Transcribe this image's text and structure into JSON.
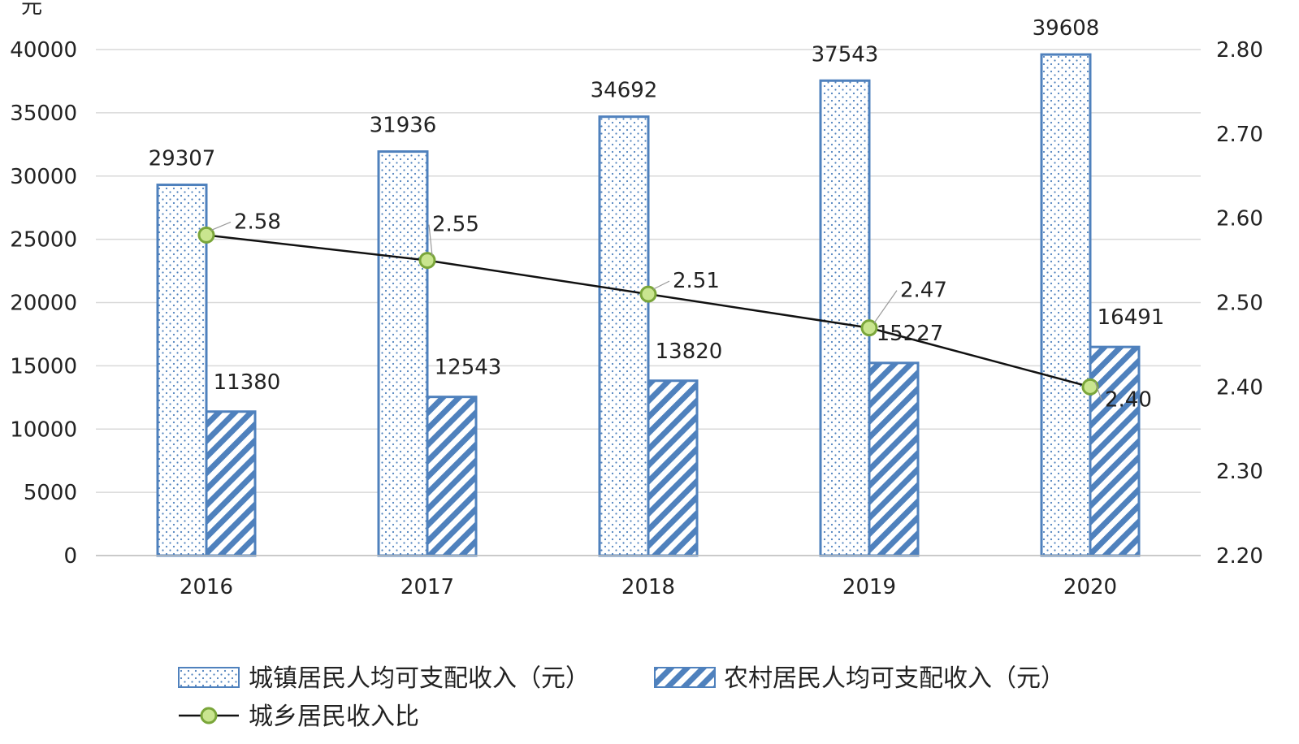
{
  "chart_data": {
    "type": "bar",
    "y_unit_label": "元",
    "categories": [
      "2016",
      "2017",
      "2018",
      "2019",
      "2020"
    ],
    "series": [
      {
        "name": "城镇居民人均可支配收入（元）",
        "kind": "bar",
        "axis": "left",
        "pattern": "dots",
        "values": [
          29307,
          31936,
          34692,
          37543,
          39608
        ],
        "labels": [
          "29307",
          "31936",
          "34692",
          "37543",
          "39608"
        ]
      },
      {
        "name": "农村居民人均可支配收入（元）",
        "kind": "bar",
        "axis": "left",
        "pattern": "diagonal-hatch",
        "values": [
          11380,
          12543,
          13820,
          15227,
          16491
        ],
        "labels": [
          "11380",
          "12543",
          "13820",
          "15227",
          "16491"
        ]
      },
      {
        "name": "城乡居民收入比",
        "kind": "line",
        "axis": "right",
        "values": [
          2.58,
          2.55,
          2.51,
          2.47,
          2.4
        ],
        "labels": [
          "2.58",
          "2.55",
          "2.51",
          "2.47",
          "2.40"
        ]
      }
    ],
    "left_axis": {
      "ylim": [
        0,
        40000
      ],
      "ticks": [
        "0",
        "5000",
        "10000",
        "15000",
        "20000",
        "25000",
        "30000",
        "35000",
        "40000"
      ]
    },
    "right_axis": {
      "ylim": [
        2.2,
        2.8
      ],
      "ticks": [
        "2.20",
        "2.30",
        "2.40",
        "2.50",
        "2.60",
        "2.70",
        "2.80"
      ]
    },
    "grid": true,
    "legend_position": "bottom",
    "colors": {
      "bar_border": "#4f81bd",
      "hatch": "#4f81bd",
      "dots": "#4f81bd",
      "line": "#111111",
      "marker_fill": "#c9e58f",
      "marker_stroke": "#7aa63a",
      "grid": "#d9d9d9"
    }
  }
}
